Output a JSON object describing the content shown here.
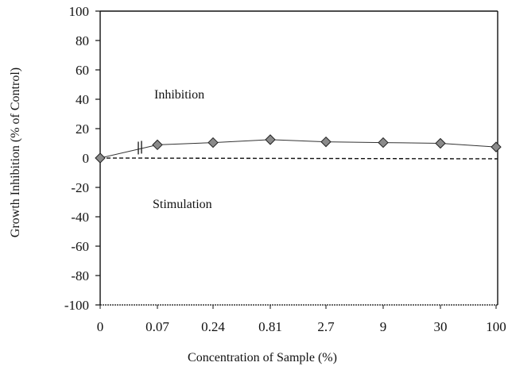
{
  "chart_data": {
    "type": "line",
    "categories": [
      "0",
      "0.07",
      "0.24",
      "0.81",
      "2.7",
      "9",
      "30",
      "100"
    ],
    "series": [
      {
        "values": [
          0,
          9,
          10.5,
          12.5,
          11,
          10.5,
          10,
          7.5
        ]
      }
    ],
    "reference_line": {
      "y": 0,
      "style": "dashed"
    },
    "axis_break": "between 0 and 0.07 on the x axis",
    "xlabel": "Concentration  of Sample (%)",
    "ylabel": "Growth Inhibition (% of Control)",
    "ylim": [
      -100,
      100
    ],
    "yticks": [
      -100,
      -80,
      -60,
      -40,
      -20,
      0,
      20,
      40,
      60,
      80,
      100
    ],
    "annotations": [
      "Inhibition",
      "Stimulation"
    ],
    "grid": false,
    "marker": "diamond",
    "colors": {
      "marker_fill": "#8a8a8a",
      "line": "#333333",
      "axis": "#111111"
    }
  }
}
